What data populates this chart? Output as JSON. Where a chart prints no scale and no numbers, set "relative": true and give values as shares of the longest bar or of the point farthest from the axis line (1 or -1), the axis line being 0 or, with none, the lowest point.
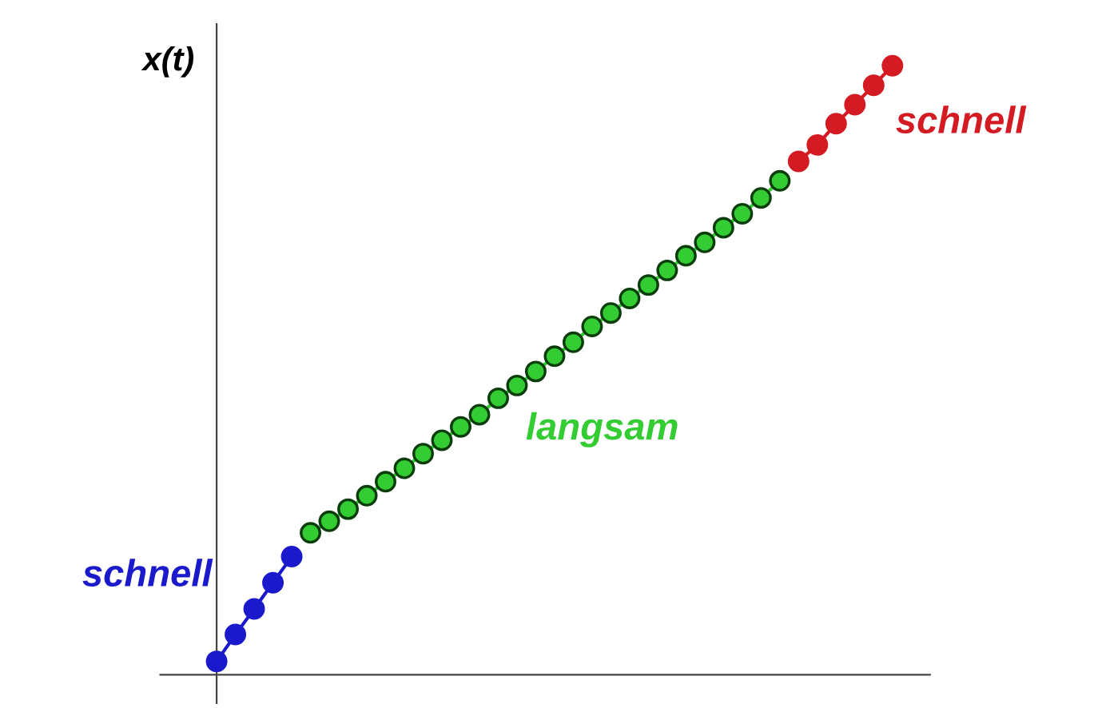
{
  "chart_data": {
    "type": "line",
    "ylabel": "x(t)",
    "relative": true,
    "marker": "circle",
    "line_style": "solid",
    "categories": [
      null,
      null,
      null,
      null,
      null,
      null,
      null,
      null,
      null,
      null,
      null,
      null,
      null,
      null,
      null,
      null,
      null,
      null,
      null,
      null,
      null,
      null,
      null,
      null,
      null,
      null,
      null,
      null,
      null,
      null,
      null,
      null,
      null,
      null,
      null,
      null,
      null
    ],
    "series": [
      {
        "name": "schnell",
        "color": "#1a1acc",
        "values": [
          0.022,
          0.066,
          0.108,
          0.151,
          0.194,
          null,
          null,
          null,
          null,
          null,
          null,
          null,
          null,
          null,
          null,
          null,
          null,
          null,
          null,
          null,
          null,
          null,
          null,
          null,
          null,
          null,
          null,
          null,
          null,
          null,
          null,
          null,
          null,
          null,
          null,
          null,
          null
        ]
      },
      {
        "name": "langsam",
        "color": "#33cc33",
        "values": [
          null,
          null,
          null,
          null,
          null,
          0.233,
          0.252,
          0.272,
          0.294,
          0.317,
          0.339,
          0.363,
          0.385,
          0.407,
          0.427,
          0.454,
          0.475,
          0.498,
          0.523,
          0.546,
          0.572,
          0.594,
          0.618,
          0.64,
          0.664,
          0.688,
          0.71,
          0.734,
          0.757,
          0.783,
          0.811,
          null,
          null,
          null,
          null,
          null,
          null
        ]
      },
      {
        "name": "schnell",
        "color": "#d41a22",
        "values": [
          null,
          null,
          null,
          null,
          null,
          null,
          null,
          null,
          null,
          null,
          null,
          null,
          null,
          null,
          null,
          null,
          null,
          null,
          null,
          null,
          null,
          null,
          null,
          null,
          null,
          null,
          null,
          null,
          null,
          null,
          null,
          0.843,
          0.87,
          0.905,
          0.936,
          0.968,
          1.0
        ]
      }
    ]
  }
}
